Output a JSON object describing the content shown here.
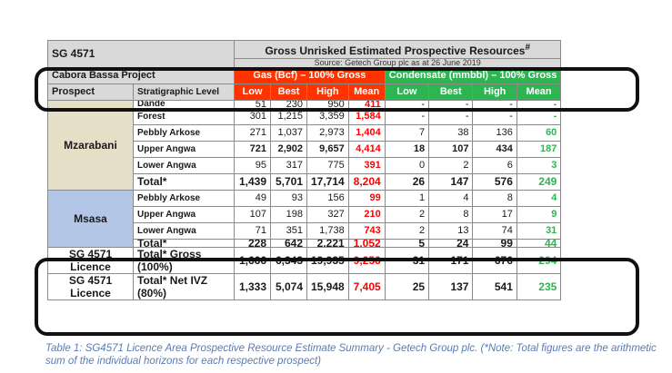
{
  "table": {
    "sg_label": "SG 4571",
    "title": "Gross Unrisked Estimated Prospective Resources",
    "title_mark": "#",
    "source": "Source: Getech Group plc as at 26 June 2019",
    "project": "Cabora Bassa Project",
    "gas_header": "Gas (Bcf) – 100% Gross",
    "cond_header": "Condensate (mmbbl) – 100% Gross",
    "prospect_label": "Prospect",
    "strat_label": "Stratigraphic Level",
    "col_low": "Low",
    "col_best": "Best",
    "col_high": "High",
    "col_mean": "Mean",
    "mzarabani": {
      "name": "Mzarabani",
      "rows": [
        {
          "level": "Dande",
          "g": [
            "51",
            "230",
            "950",
            "411"
          ],
          "c": [
            "-",
            "-",
            "-",
            "-"
          ]
        },
        {
          "level": "Forest",
          "g": [
            "301",
            "1,215",
            "3,359",
            "1,584"
          ],
          "c": [
            "-",
            "-",
            "-",
            "-"
          ]
        },
        {
          "level": "Pebbly Arkose",
          "g": [
            "271",
            "1,037",
            "2,973",
            "1,404"
          ],
          "c": [
            "7",
            "38",
            "136",
            "60"
          ]
        },
        {
          "level": "Upper Angwa",
          "g": [
            "721",
            "2,902",
            "9,657",
            "4,414"
          ],
          "c": [
            "18",
            "107",
            "434",
            "187"
          ]
        },
        {
          "level": "Lower Angwa",
          "g": [
            "95",
            "317",
            "775",
            "391"
          ],
          "c": [
            "0",
            "2",
            "6",
            "3"
          ]
        }
      ],
      "total": {
        "level": "Total*",
        "g": [
          "1,439",
          "5,701",
          "17,714",
          "8,204"
        ],
        "c": [
          "26",
          "147",
          "576",
          "249"
        ]
      }
    },
    "msasa": {
      "name": "Msasa",
      "rows": [
        {
          "level": "Pebbly Arkose",
          "g": [
            "49",
            "93",
            "156",
            "99"
          ],
          "c": [
            "1",
            "4",
            "8",
            "4"
          ]
        },
        {
          "level": "Upper Angwa",
          "g": [
            "107",
            "198",
            "327",
            "210"
          ],
          "c": [
            "2",
            "8",
            "17",
            "9"
          ]
        },
        {
          "level": "Lower Angwa",
          "g": [
            "71",
            "351",
            "1,738",
            "743"
          ],
          "c": [
            "2",
            "13",
            "74",
            "31"
          ]
        }
      ],
      "total": {
        "level": "Total*",
        "g": [
          "228",
          "642",
          "2,221",
          "1,052"
        ],
        "c": [
          "5",
          "24",
          "99",
          "44"
        ]
      }
    },
    "licence": [
      {
        "name": "SG 4571 Licence",
        "label": "Total* Gross (100%)",
        "g": [
          "1,666",
          "6,343",
          "19,935",
          "9,256"
        ],
        "c": [
          "31",
          "171",
          "676",
          "294"
        ]
      },
      {
        "name": "SG 4571 Licence",
        "label": "Total* Net IVZ (80%)",
        "g": [
          "1,333",
          "5,074",
          "15,948",
          "7,405"
        ],
        "c": [
          "25",
          "137",
          "541",
          "235"
        ]
      }
    ]
  },
  "caption": "Table 1: SG4571 Licence Area Prospective Resource Estimate Summary - Getech Group plc. (*Note: Total figures are the arithmetic sum of the individual horizons for each respective prospect)",
  "colors": {
    "gas": "#ff3300",
    "condensate": "#2db552",
    "mzarabani": "#e6dfc8",
    "msasa": "#b4c6e7",
    "header": "#d9d9d9"
  }
}
